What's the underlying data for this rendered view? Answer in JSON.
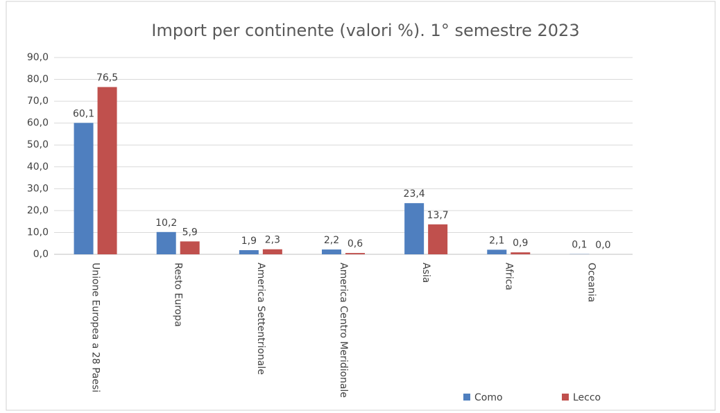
{
  "chart_data": {
    "type": "bar",
    "title": "Import per continente (valori %). 1° semestre 2023",
    "categories": [
      "Unione Europea a 28 Paesi",
      "Resto Europa",
      "America Settentrionale",
      "America Centro Meridionale",
      "Asia",
      "Africa",
      "Oceania"
    ],
    "series": [
      {
        "name": "Como",
        "color": "#4f7fbf",
        "values": [
          60.1,
          10.2,
          1.9,
          2.2,
          23.4,
          2.1,
          0.1
        ],
        "value_labels": [
          "60,1",
          "10,2",
          "1,9",
          "2,2",
          "23,4",
          "2,1",
          "0,1"
        ]
      },
      {
        "name": "Lecco",
        "color": "#c0504d",
        "values": [
          76.5,
          5.9,
          2.3,
          0.6,
          13.7,
          0.9,
          0.0
        ],
        "value_labels": [
          "76,5",
          "5,9",
          "2,3",
          "0,6",
          "13,7",
          "0,9",
          "0,0"
        ]
      }
    ],
    "ylim": [
      0,
      90
    ],
    "yticks": [
      {
        "value": 0,
        "label": "0,0"
      },
      {
        "value": 10,
        "label": "10,0"
      },
      {
        "value": 20,
        "label": "20,0"
      },
      {
        "value": 30,
        "label": "30,0"
      },
      {
        "value": 40,
        "label": "40,0"
      },
      {
        "value": 50,
        "label": "50,0"
      },
      {
        "value": 60,
        "label": "60,0"
      },
      {
        "value": 70,
        "label": "70,0"
      },
      {
        "value": 80,
        "label": "80,0"
      },
      {
        "value": 90,
        "label": "90,0"
      }
    ],
    "grid": true,
    "legend": "bottom-right"
  }
}
